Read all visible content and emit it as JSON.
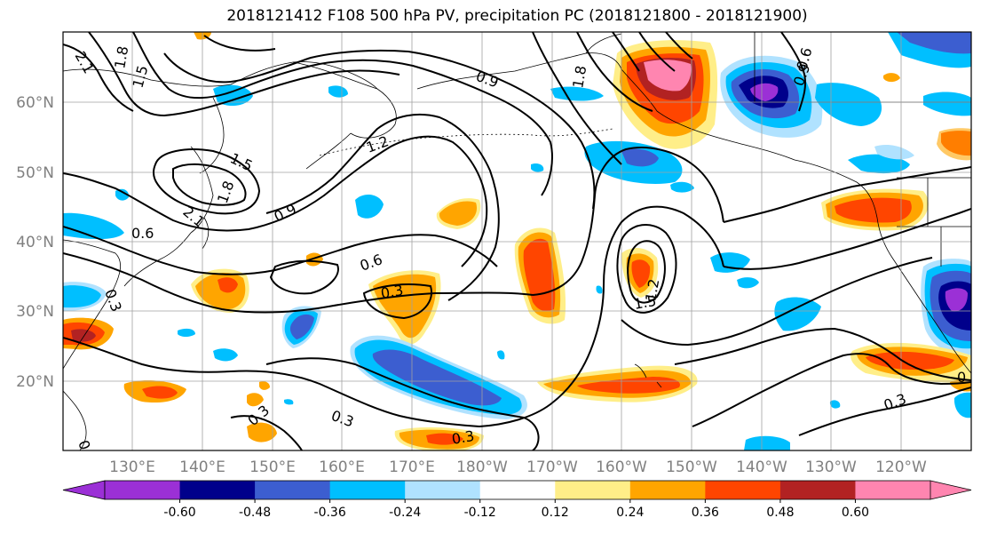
{
  "title": "2018121412 F108 500 hPa PV, precipitation PC (2018121800 - 2018121900)",
  "latitude_labels": [
    "60°N",
    "50°N",
    "40°N",
    "30°N",
    "20°N"
  ],
  "longitude_labels": [
    "130°E",
    "140°E",
    "150°E",
    "160°E",
    "170°E",
    "180°W",
    "170°W",
    "160°W",
    "150°W",
    "140°W",
    "130°W",
    "120°W"
  ],
  "colorbar": {
    "colors": [
      "#9b30d6",
      "#00008b",
      "#3c5ed0",
      "#00bfff",
      "#b0e2ff",
      "#ffffff",
      "#ffee88",
      "#ffa500",
      "#ff4500",
      "#b22222",
      "#ff85b0"
    ],
    "tick_labels": [
      "-0.60",
      "-0.48",
      "-0.36",
      "-0.24",
      "-0.12",
      "0.12",
      "0.24",
      "0.36",
      "0.48",
      "0.60"
    ]
  },
  "contour_labels": [
    "2.1",
    "1.8",
    "1.5",
    "0.9",
    "1.2",
    "1.5",
    "1.8",
    "2.1",
    "0.6",
    "0.9",
    "0.6",
    "0.3",
    "0.3",
    "1.5",
    "1.2",
    "0.3",
    "0.3",
    "0.3",
    "0.3",
    "0.3",
    "0.6",
    "0.9",
    "1.8",
    "0"
  ]
}
